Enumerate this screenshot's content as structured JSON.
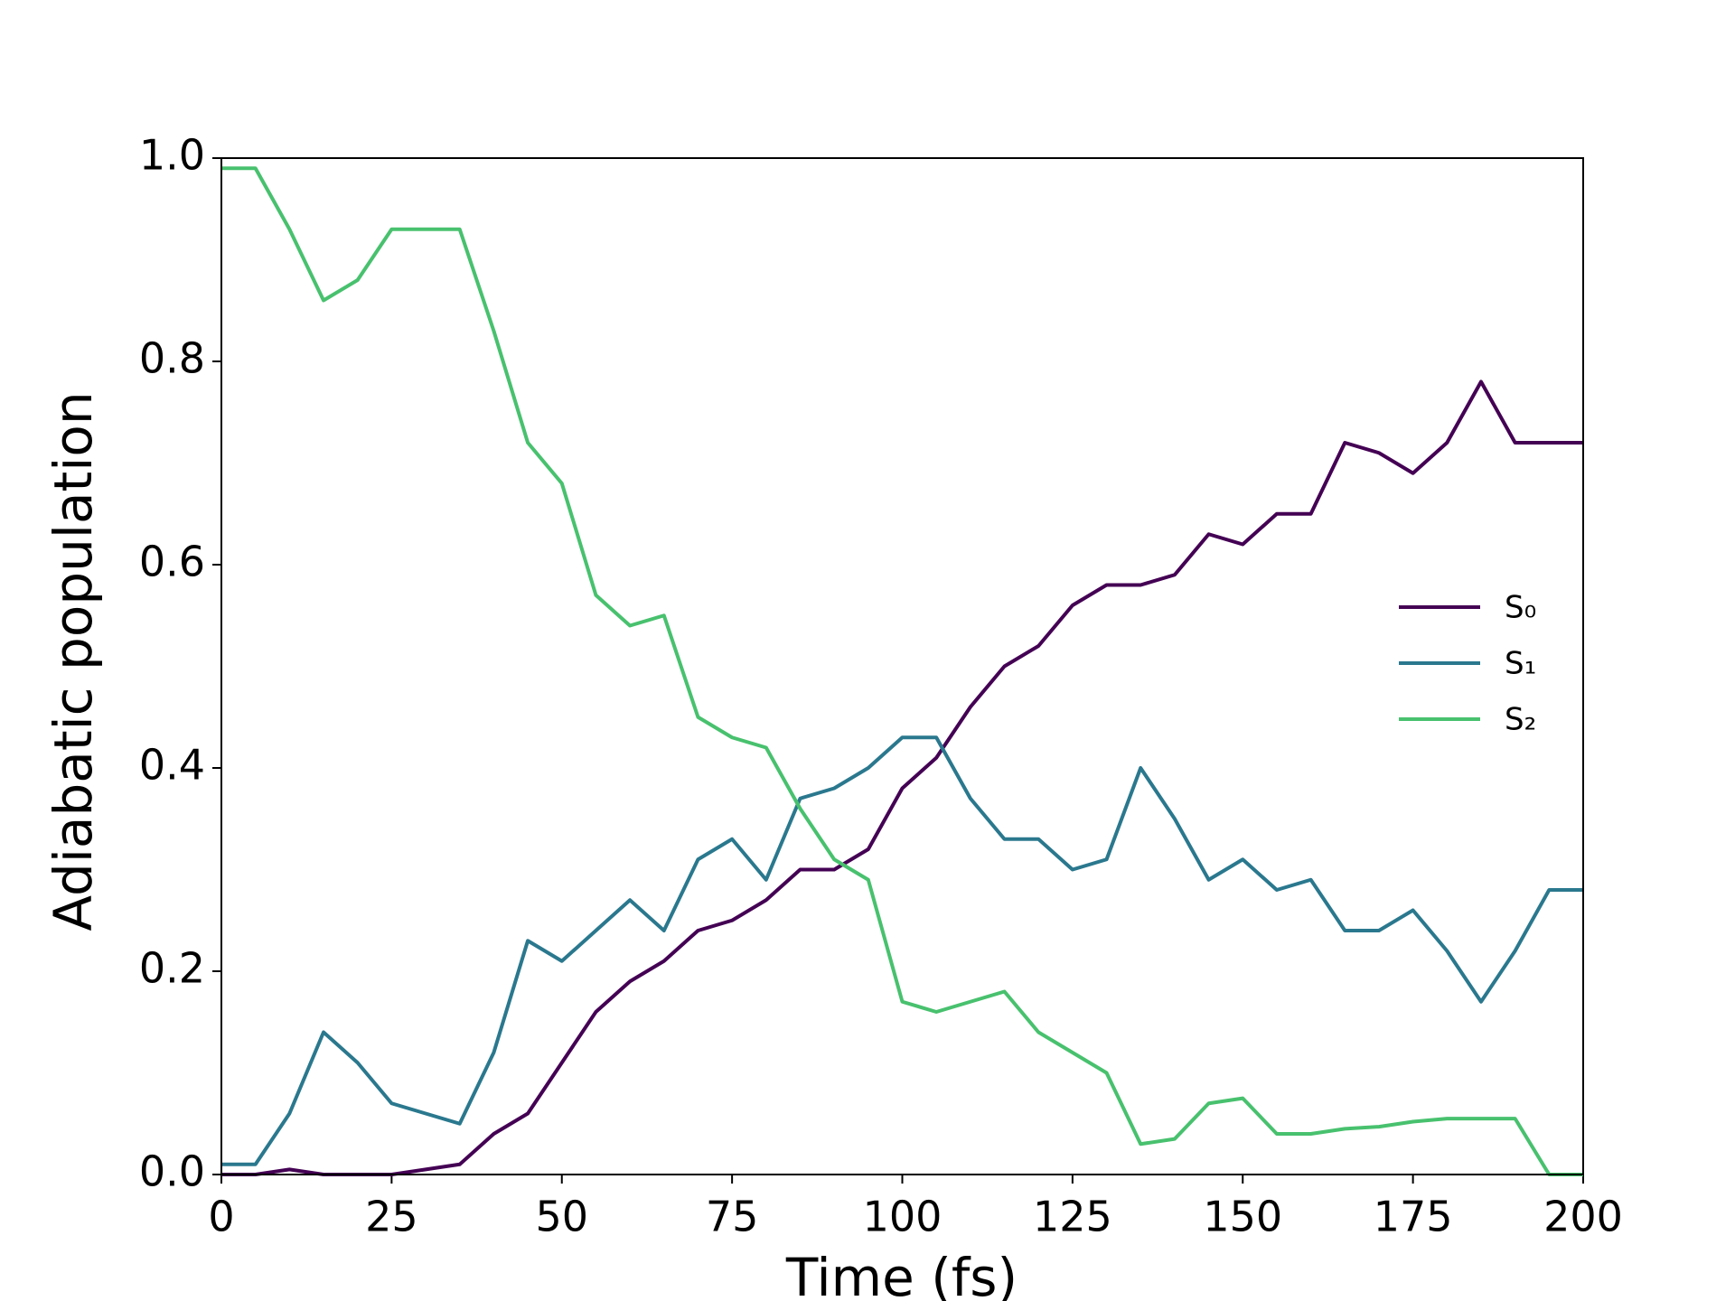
{
  "chart_data": {
    "type": "line",
    "xlabel": "Time (fs)",
    "ylabel": "Adiabatic population",
    "x": [
      0,
      5,
      10,
      15,
      20,
      25,
      30,
      35,
      40,
      45,
      50,
      55,
      60,
      65,
      70,
      75,
      80,
      85,
      90,
      95,
      100,
      105,
      110,
      115,
      120,
      125,
      130,
      135,
      140,
      145,
      150,
      155,
      160,
      165,
      170,
      175,
      180,
      185,
      190,
      195,
      200
    ],
    "series": [
      {
        "name": "S₀",
        "color": "#440154",
        "values": [
          0,
          0,
          0.005,
          0,
          0,
          0,
          0.005,
          0.01,
          0.04,
          0.06,
          0.11,
          0.16,
          0.19,
          0.21,
          0.24,
          0.25,
          0.27,
          0.3,
          0.3,
          0.32,
          0.38,
          0.41,
          0.46,
          0.5,
          0.52,
          0.56,
          0.58,
          0.58,
          0.59,
          0.63,
          0.62,
          0.65,
          0.65,
          0.72,
          0.71,
          0.69,
          0.72,
          0.78,
          0.72,
          0.72,
          0.72
        ]
      },
      {
        "name": "S₁",
        "color": "#2a788e",
        "values": [
          0.01,
          0.01,
          0.06,
          0.14,
          0.11,
          0.07,
          0.06,
          0.05,
          0.12,
          0.23,
          0.21,
          0.24,
          0.27,
          0.24,
          0.31,
          0.33,
          0.29,
          0.37,
          0.38,
          0.4,
          0.43,
          0.43,
          0.37,
          0.33,
          0.33,
          0.3,
          0.31,
          0.4,
          0.35,
          0.29,
          0.31,
          0.28,
          0.29,
          0.24,
          0.24,
          0.26,
          0.22,
          0.17,
          0.22,
          0.28,
          0.28
        ]
      },
      {
        "name": "S₂",
        "color": "#48c16e",
        "values": [
          0.99,
          0.99,
          0.93,
          0.86,
          0.88,
          0.93,
          0.93,
          0.93,
          0.83,
          0.72,
          0.68,
          0.57,
          0.54,
          0.55,
          0.45,
          0.43,
          0.42,
          0.36,
          0.31,
          0.29,
          0.17,
          0.16,
          0.17,
          0.18,
          0.14,
          0.12,
          0.1,
          0.03,
          0.035,
          0.07,
          0.075,
          0.04,
          0.04,
          0.045,
          0.047,
          0.052,
          0.055,
          0.055,
          0.055,
          0,
          0
        ]
      }
    ],
    "xlim": [
      0,
      200
    ],
    "xticks": [
      0,
      25,
      50,
      75,
      100,
      125,
      150,
      175,
      200
    ],
    "ylim": [
      0,
      1
    ],
    "yticks": [
      {
        "value": 0,
        "label": "0.0"
      },
      {
        "value": 0.2,
        "label": "0.2"
      },
      {
        "value": 0.4,
        "label": "0.4"
      },
      {
        "value": 0.6,
        "label": "0.6"
      },
      {
        "value": 0.8,
        "label": "0.8"
      },
      {
        "value": 1,
        "label": "1.0"
      }
    ],
    "grid": false,
    "legend": "center right"
  }
}
